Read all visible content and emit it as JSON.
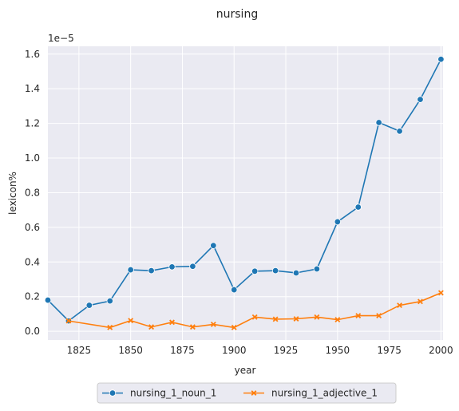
{
  "chart_data": {
    "type": "line",
    "title": "nursing",
    "xlabel": "year",
    "ylabel": "lexicon%",
    "y_scale_label": "1e−5",
    "xlim": [
      1810,
      2001
    ],
    "ylim": [
      -0.05,
      1.645
    ],
    "x_ticks": [
      1825,
      1850,
      1875,
      1900,
      1925,
      1950,
      1975,
      2000
    ],
    "y_ticks": [
      0.0,
      0.2,
      0.4,
      0.6,
      0.8,
      1.0,
      1.2,
      1.4,
      1.6
    ],
    "grid": true,
    "legend_position": "bottom-center",
    "series": [
      {
        "name": "nursing_1_noun_1",
        "color": "#1f77b4",
        "marker": "circle",
        "points": [
          [
            1810,
            0.18
          ],
          [
            1820,
            0.06
          ],
          [
            1830,
            0.15
          ],
          [
            1840,
            0.175
          ],
          [
            1850,
            0.355
          ],
          [
            1860,
            0.35
          ],
          [
            1870,
            0.372
          ],
          [
            1880,
            0.375
          ],
          [
            1890,
            0.495
          ],
          [
            1900,
            0.24
          ],
          [
            1910,
            0.347
          ],
          [
            1920,
            0.35
          ],
          [
            1930,
            0.337
          ],
          [
            1940,
            0.36
          ],
          [
            1950,
            0.632
          ],
          [
            1960,
            0.717
          ],
          [
            1970,
            1.205
          ],
          [
            1980,
            1.155
          ],
          [
            1990,
            1.338
          ],
          [
            2000,
            1.57
          ]
        ]
      },
      {
        "name": "nursing_1_adjective_1",
        "color": "#ff7f0e",
        "marker": "x",
        "points": [
          [
            1820,
            0.06
          ],
          [
            1840,
            0.022
          ],
          [
            1850,
            0.062
          ],
          [
            1860,
            0.025
          ],
          [
            1870,
            0.052
          ],
          [
            1880,
            0.025
          ],
          [
            1890,
            0.04
          ],
          [
            1900,
            0.022
          ],
          [
            1910,
            0.082
          ],
          [
            1920,
            0.07
          ],
          [
            1930,
            0.072
          ],
          [
            1940,
            0.082
          ],
          [
            1950,
            0.067
          ],
          [
            1960,
            0.09
          ],
          [
            1970,
            0.09
          ],
          [
            1980,
            0.15
          ],
          [
            1990,
            0.172
          ],
          [
            2000,
            0.222
          ]
        ]
      }
    ]
  }
}
